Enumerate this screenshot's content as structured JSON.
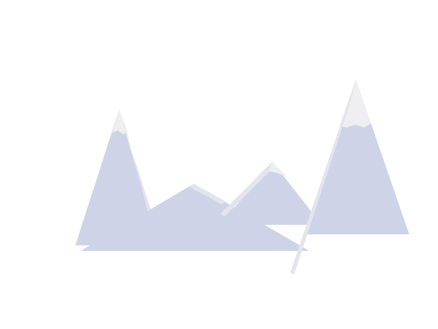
{
  "scene": {
    "background_color": "#ffffff",
    "mountain_color": "#cfd3e8",
    "snow_color": "#efeff2",
    "ridge_color": "#e4e4ec"
  }
}
